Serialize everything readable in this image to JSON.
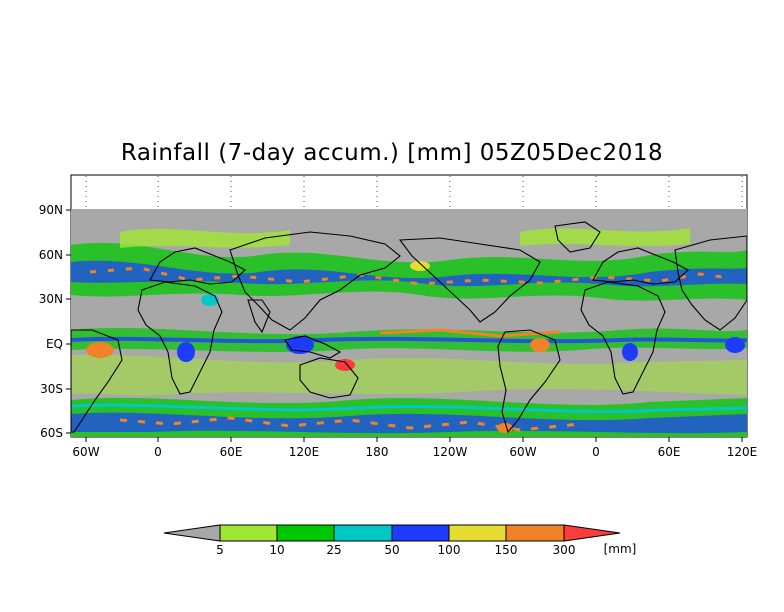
{
  "title": "Rainfall (7-day accum.) [mm] 05Z05Dec2018",
  "map": {
    "lat_ticks": [
      "90N",
      "60N",
      "30N",
      "EQ",
      "30S",
      "60S"
    ],
    "lon_ticks": [
      "60W",
      "0",
      "60E",
      "120E",
      "180",
      "120W",
      "60W",
      "0",
      "60E",
      "120E"
    ]
  },
  "colorbar": {
    "labels": [
      "5",
      "10",
      "25",
      "50",
      "100",
      "150",
      "300"
    ],
    "unit": "[mm]",
    "colors": [
      "#a8a8a8",
      "#a0e632",
      "#00c800",
      "#00c8c8",
      "#1e3cff",
      "#e6dc32",
      "#f08228",
      "#fa3c3c"
    ]
  },
  "colors": {
    "land_mask": "#a8a8a8",
    "coastline": "#000000"
  }
}
